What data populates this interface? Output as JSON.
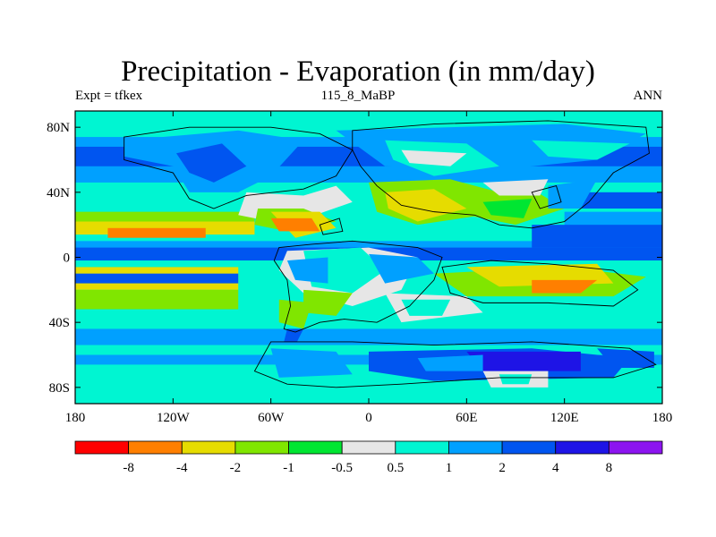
{
  "title": "Precipitation - Evaporation (in mm/day)",
  "subtitle_left": "Expt = tfkex",
  "subtitle_center": "115_8_MaBP",
  "subtitle_right": "ANN",
  "chart_data": {
    "type": "heatmap",
    "x_ticks": [
      {
        "value": -180,
        "label": "180"
      },
      {
        "value": -120,
        "label": "120W"
      },
      {
        "value": -60,
        "label": "60W"
      },
      {
        "value": 0,
        "label": "0"
      },
      {
        "value": 60,
        "label": "60E"
      },
      {
        "value": 120,
        "label": "120E"
      },
      {
        "value": 180,
        "label": "180"
      }
    ],
    "y_ticks": [
      {
        "value": 80,
        "label": "80N"
      },
      {
        "value": 40,
        "label": "40N"
      },
      {
        "value": 0,
        "label": "0"
      },
      {
        "value": -40,
        "label": "40S"
      },
      {
        "value": -80,
        "label": "80S"
      }
    ],
    "xlim": [
      -180,
      180
    ],
    "ylim": [
      -90,
      90
    ],
    "colorbar": {
      "colors": [
        "#ff0000",
        "#ff7f00",
        "#e6dc00",
        "#80e600",
        "#00e632",
        "#e6e6e6",
        "#00f5d2",
        "#00a0ff",
        "#0055f0",
        "#1e14e6",
        "#8c14f0"
      ],
      "labels": [
        "-8",
        "-4",
        "-2",
        "-1",
        "-0.5",
        "0.5",
        "1",
        "2",
        "4",
        "8"
      ]
    }
  }
}
